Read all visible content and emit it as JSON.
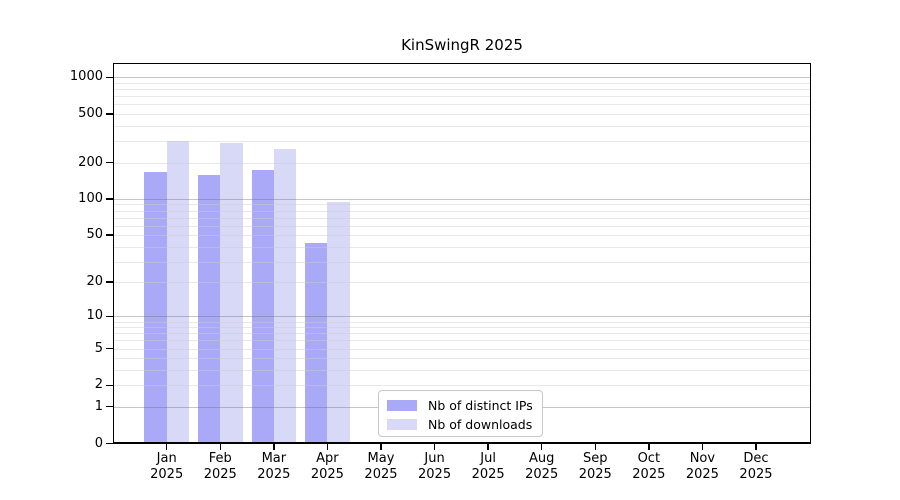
{
  "chart_data": {
    "type": "bar",
    "title": "KinSwingR 2025",
    "y_scale": "log10(value+1)",
    "categories": [
      "Jan",
      "Feb",
      "Mar",
      "Apr",
      "May",
      "Jun",
      "Jul",
      "Aug",
      "Sep",
      "Oct",
      "Nov",
      "Dec"
    ],
    "x_year": "2025",
    "series": [
      {
        "name": "Nb of distinct IPs",
        "color": "#a9a9f7",
        "values": [
          168,
          157,
          172,
          43,
          null,
          null,
          null,
          null,
          null,
          null,
          null,
          null
        ]
      },
      {
        "name": "Nb of downloads",
        "color": "#d8d8f7",
        "values": [
          300,
          292,
          259,
          95,
          null,
          null,
          null,
          null,
          null,
          null,
          null,
          null
        ]
      }
    ],
    "y_tick_labels": [
      1000,
      500,
      200,
      100,
      50,
      20,
      10,
      5,
      2,
      1,
      0
    ],
    "ylim": [
      0,
      1315
    ],
    "grid": "horizontal, minor lines at 2-9 per decade, major at powers of 10",
    "legend_position": "bottom-center-inside"
  },
  "colors": {
    "background": "#ffffff",
    "axis": "#000000",
    "grid_major": "rgba(105,105,105,0.38)",
    "grid_minor": "rgba(205,205,205,0.45)",
    "legend_border": "#c8c8c8"
  }
}
